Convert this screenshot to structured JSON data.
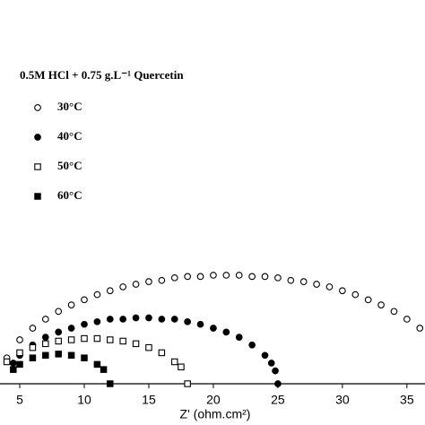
{
  "chart_data": {
    "type": "scatter",
    "annotation": "0.5M HCl + 0.75 g.L⁻¹ Quercetin",
    "xlabel": "Z' (ohm.cm²)",
    "xlim": [
      3.47,
      36.4
    ],
    "ylim": [
      0,
      29.7
    ],
    "xticks": [
      5,
      10,
      15,
      20,
      25,
      30,
      35
    ],
    "series": [
      {
        "name": "30°C",
        "marker": "open-circle",
        "color": "#000000",
        "x": [
          4,
          5,
          6,
          7,
          8,
          9,
          10,
          11,
          12,
          13,
          14,
          15,
          16,
          17,
          18,
          19,
          20,
          21,
          22,
          23,
          24,
          25,
          26,
          27,
          28,
          29,
          30,
          31,
          32,
          33,
          34,
          35,
          36
        ],
        "values": [
          2.0,
          3.4,
          4.3,
          5.0,
          5.6,
          6.1,
          6.5,
          6.9,
          7.2,
          7.5,
          7.7,
          7.9,
          8.0,
          8.2,
          8.3,
          8.3,
          8.4,
          8.4,
          8.4,
          8.3,
          8.3,
          8.2,
          8.0,
          7.9,
          7.7,
          7.5,
          7.2,
          6.9,
          6.5,
          6.1,
          5.6,
          5.0,
          4.3
        ]
      },
      {
        "name": "40°C",
        "marker": "filled-circle",
        "color": "#000000",
        "x": [
          4.5,
          5,
          6,
          7,
          8,
          9,
          10,
          11,
          12,
          13,
          14,
          15,
          16,
          17,
          18,
          19,
          20,
          21,
          22,
          23,
          24,
          24.5,
          24.8,
          25
        ],
        "values": [
          1.6,
          2.2,
          3.0,
          3.6,
          4.0,
          4.3,
          4.6,
          4.8,
          5.0,
          5.0,
          5.1,
          5.1,
          5.0,
          5.0,
          4.8,
          4.6,
          4.3,
          4.0,
          3.6,
          3.0,
          2.2,
          1.6,
          1.0,
          0
        ]
      },
      {
        "name": "50°C",
        "marker": "open-square",
        "color": "#000000",
        "x": [
          4,
          5,
          6,
          7,
          8,
          9,
          10,
          11,
          12,
          13,
          14,
          15,
          16,
          17,
          17.5,
          18
        ],
        "values": [
          1.7,
          2.4,
          2.8,
          3.1,
          3.3,
          3.4,
          3.5,
          3.5,
          3.4,
          3.3,
          3.1,
          2.8,
          2.4,
          1.7,
          1.3,
          0
        ]
      },
      {
        "name": "60°C",
        "marker": "filled-square",
        "color": "#000000",
        "x": [
          4.5,
          5,
          6,
          7,
          8,
          9,
          10,
          11,
          11.5,
          12
        ],
        "values": [
          1.1,
          1.5,
          2.0,
          2.2,
          2.3,
          2.2,
          2.0,
          1.5,
          1.1,
          0
        ]
      }
    ]
  }
}
